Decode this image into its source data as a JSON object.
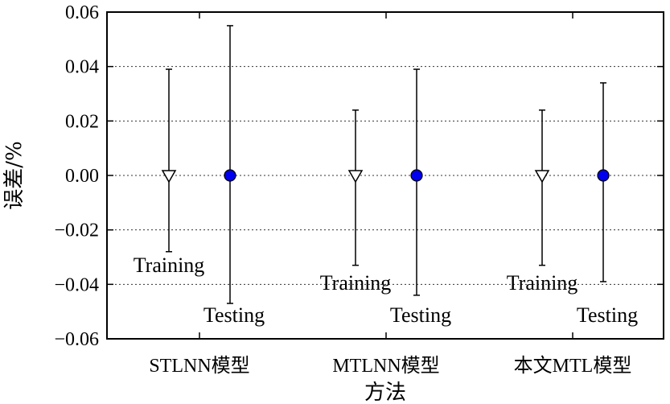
{
  "chart_data": {
    "type": "scatter",
    "ylabel": "误差/%",
    "xlabel": "方法",
    "ylim": [
      -0.06,
      0.06
    ],
    "yticks": [
      0.06,
      0.04,
      0.02,
      0.0,
      -0.02,
      -0.04,
      -0.06
    ],
    "ytick_labels": [
      "0.06",
      "0.04",
      "0.02",
      "0.00",
      "−0.02",
      "−0.04",
      "−0.06"
    ],
    "grid": "horizontal dotted",
    "categories": [
      "STLNN模型",
      "MTLNN模型",
      "本文MTL模型"
    ],
    "series": [
      {
        "name": "Training",
        "marker": "open-down-triangle",
        "color": "#000000",
        "values": [
          0.0,
          0.0,
          0.0
        ],
        "err_upper": [
          0.039,
          0.024,
          0.024
        ],
        "err_lower": [
          -0.028,
          -0.033,
          -0.033
        ],
        "annotations": [
          "Training",
          "Training",
          "Training"
        ]
      },
      {
        "name": "Testing",
        "marker": "filled-circle",
        "color": "#0000ee",
        "values": [
          0.0,
          0.0,
          0.0
        ],
        "err_upper": [
          0.055,
          0.039,
          0.034
        ],
        "err_lower": [
          -0.047,
          -0.044,
          -0.039
        ],
        "annotations": [
          "Testing",
          "Testing",
          "Testing"
        ]
      }
    ]
  }
}
